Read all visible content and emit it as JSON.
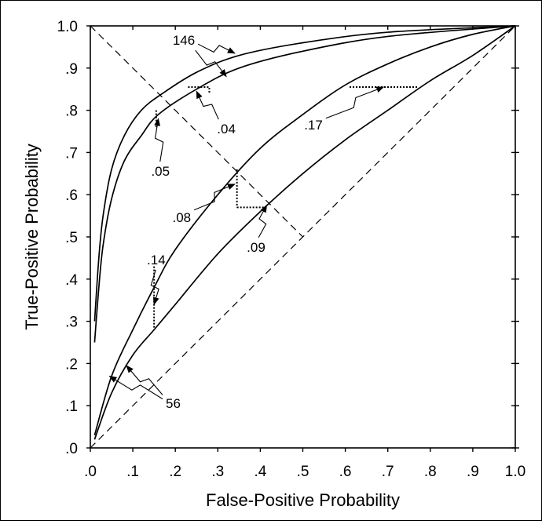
{
  "chart_data": {
    "type": "line",
    "xlabel": "False-Positive Probability",
    "ylabel": "True-Positive Probability",
    "xlim": [
      0,
      1
    ],
    "ylim": [
      0,
      1
    ],
    "x_ticks": [
      {
        "value": 0.0,
        "label": ".0"
      },
      {
        "value": 0.1,
        "label": ".1"
      },
      {
        "value": 0.2,
        "label": ".2"
      },
      {
        "value": 0.3,
        "label": ".3"
      },
      {
        "value": 0.4,
        "label": ".4"
      },
      {
        "value": 0.5,
        "label": ".5"
      },
      {
        "value": 0.6,
        "label": ".6"
      },
      {
        "value": 0.7,
        "label": ".7"
      },
      {
        "value": 0.8,
        "label": ".8"
      },
      {
        "value": 0.9,
        "label": ".9"
      },
      {
        "value": 1.0,
        "label": "1.0"
      }
    ],
    "y_ticks": [
      {
        "value": 0.0,
        "label": ".0"
      },
      {
        "value": 0.1,
        "label": ".1"
      },
      {
        "value": 0.2,
        "label": ".2"
      },
      {
        "value": 0.3,
        "label": ".3"
      },
      {
        "value": 0.4,
        "label": ".4"
      },
      {
        "value": 0.5,
        "label": ".5"
      },
      {
        "value": 0.6,
        "label": ".6"
      },
      {
        "value": 0.7,
        "label": ".7"
      },
      {
        "value": 0.8,
        "label": ".8"
      },
      {
        "value": 0.9,
        "label": ".9"
      },
      {
        "value": 1.0,
        "label": "1.0"
      }
    ],
    "grid": false,
    "reference_lines": [
      {
        "points": [
          [
            0,
            0
          ],
          [
            1,
            1
          ]
        ],
        "style": "dashed"
      },
      {
        "points": [
          [
            0,
            1
          ],
          [
            0.5,
            0.5
          ]
        ],
        "style": "dashed"
      }
    ],
    "series": [
      {
        "points": [
          [
            0.01,
            0.3
          ],
          [
            0.02,
            0.45
          ],
          [
            0.03,
            0.55
          ],
          [
            0.05,
            0.66
          ],
          [
            0.08,
            0.74
          ],
          [
            0.12,
            0.8
          ],
          [
            0.17,
            0.84
          ],
          [
            0.25,
            0.89
          ],
          [
            0.35,
            0.93
          ],
          [
            0.5,
            0.96
          ],
          [
            0.7,
            0.985
          ],
          [
            1.0,
            1.0
          ]
        ]
      },
      {
        "points": [
          [
            0.01,
            0.25
          ],
          [
            0.02,
            0.38
          ],
          [
            0.03,
            0.48
          ],
          [
            0.05,
            0.59
          ],
          [
            0.08,
            0.68
          ],
          [
            0.12,
            0.74
          ],
          [
            0.16,
            0.79
          ],
          [
            0.25,
            0.85
          ],
          [
            0.35,
            0.9
          ],
          [
            0.5,
            0.94
          ],
          [
            0.7,
            0.975
          ],
          [
            1.0,
            1.0
          ]
        ]
      },
      {
        "points": [
          [
            0.01,
            0.03
          ],
          [
            0.05,
            0.17
          ],
          [
            0.1,
            0.28
          ],
          [
            0.15,
            0.38
          ],
          [
            0.2,
            0.47
          ],
          [
            0.3,
            0.6
          ],
          [
            0.4,
            0.71
          ],
          [
            0.5,
            0.79
          ],
          [
            0.6,
            0.86
          ],
          [
            0.7,
            0.91
          ],
          [
            0.8,
            0.95
          ],
          [
            0.9,
            0.98
          ],
          [
            1.0,
            1.0
          ]
        ]
      },
      {
        "points": [
          [
            0.01,
            0.02
          ],
          [
            0.05,
            0.13
          ],
          [
            0.1,
            0.22
          ],
          [
            0.15,
            0.28
          ],
          [
            0.2,
            0.34
          ],
          [
            0.3,
            0.46
          ],
          [
            0.4,
            0.56
          ],
          [
            0.5,
            0.65
          ],
          [
            0.6,
            0.73
          ],
          [
            0.7,
            0.8
          ],
          [
            0.8,
            0.87
          ],
          [
            0.9,
            0.93
          ],
          [
            1.0,
            1.0
          ]
        ]
      }
    ],
    "annotations": [
      {
        "label": "146",
        "text_at": [
          0.22,
          0.955
        ],
        "arrows_to": [
          [
            0.34,
            0.935
          ],
          [
            0.32,
            0.88
          ]
        ]
      },
      {
        "label": ".04",
        "text_at": [
          0.32,
          0.745
        ],
        "arrows_to": [
          [
            0.25,
            0.845
          ]
        ],
        "bracket": [
          [
            0.23,
            0.855
          ],
          [
            0.28,
            0.855
          ],
          [
            0.28,
            0.84
          ]
        ]
      },
      {
        "label": ".05",
        "text_at": [
          0.165,
          0.645
        ],
        "arrows_to": [
          [
            0.16,
            0.78
          ]
        ],
        "bracket": [
          [
            0.155,
            0.8
          ],
          [
            0.155,
            0.76
          ]
        ]
      },
      {
        "label": ".08",
        "text_at": [
          0.215,
          0.535
        ],
        "arrows_to": [
          [
            0.34,
            0.625
          ]
        ],
        "bracket": [
          [
            0.345,
            0.66
          ],
          [
            0.345,
            0.57
          ]
        ]
      },
      {
        "label": ".09",
        "text_at": [
          0.39,
          0.465
        ],
        "arrows_to": [
          [
            0.415,
            0.575
          ]
        ],
        "bracket": [
          [
            0.345,
            0.57
          ],
          [
            0.415,
            0.57
          ]
        ]
      },
      {
        "label": ".14",
        "text_at": [
          0.155,
          0.435
        ],
        "arrows_to": [
          [
            0.15,
            0.34
          ]
        ],
        "bracket": [
          [
            0.15,
            0.43
          ],
          [
            0.15,
            0.28
          ]
        ]
      },
      {
        "label": ".17",
        "text_at": [
          0.525,
          0.755
        ],
        "arrows_to": [
          [
            0.69,
            0.855
          ]
        ],
        "bracket": [
          [
            0.61,
            0.855
          ],
          [
            0.77,
            0.855
          ]
        ]
      },
      {
        "label": "56",
        "text_at": [
          0.195,
          0.095
        ],
        "arrows_to": [
          [
            0.045,
            0.17
          ],
          [
            0.085,
            0.195
          ]
        ]
      }
    ]
  }
}
